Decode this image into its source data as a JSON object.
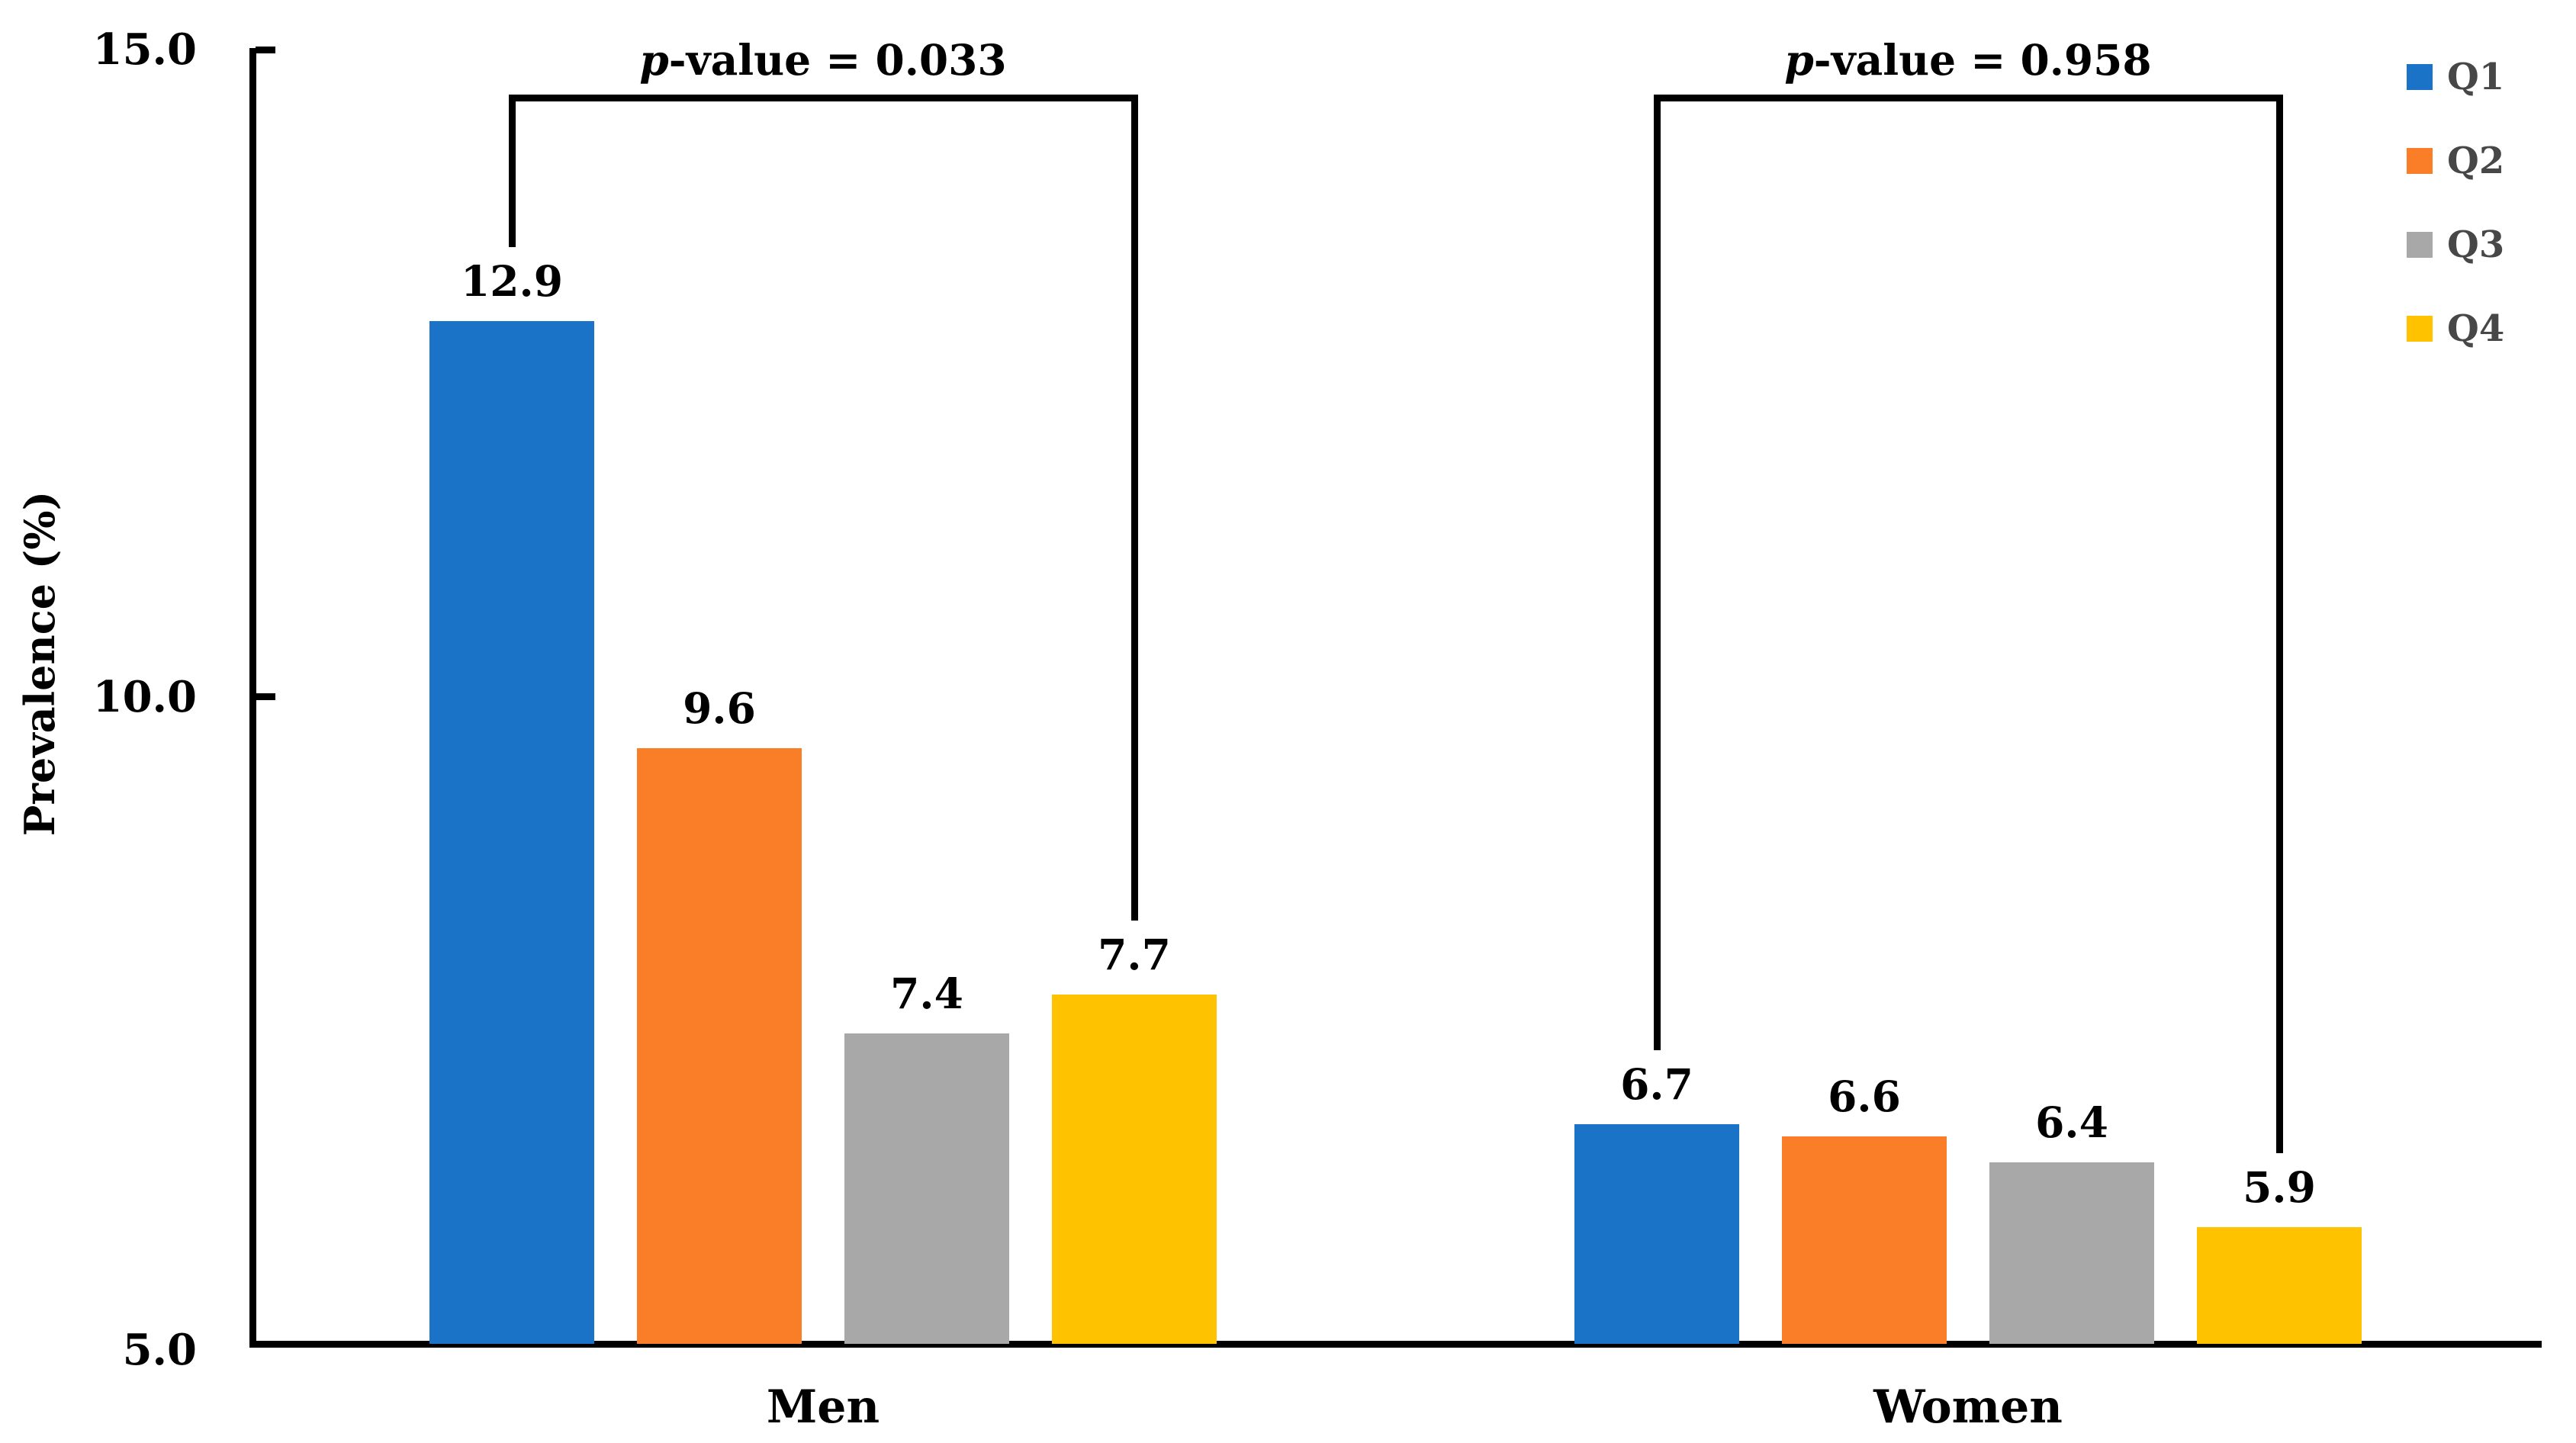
{
  "chart_data": {
    "type": "bar",
    "title": "",
    "xlabel": "",
    "ylabel": "Prevalence (%)",
    "ylim": [
      5.0,
      15.0
    ],
    "yticks": [
      15.0,
      10.0,
      5.0
    ],
    "ytick_labels": [
      "15.0",
      "10.0",
      "5.0"
    ],
    "categories": [
      "Men",
      "Women"
    ],
    "series": [
      {
        "name": "Q1",
        "color": "#1A73C6",
        "values": [
          12.9,
          6.7
        ]
      },
      {
        "name": "Q2",
        "color": "#FA7E27",
        "values": [
          9.6,
          6.6
        ]
      },
      {
        "name": "Q3",
        "color": "#A8A8A8",
        "values": [
          7.4,
          6.4
        ]
      },
      {
        "name": "Q4",
        "color": "#FEC200",
        "values": [
          7.7,
          5.9
        ]
      }
    ],
    "bar_value_labels": [
      [
        "12.9",
        "9.6",
        "7.4",
        "7.7"
      ],
      [
        "6.7",
        "6.6",
        "6.4",
        "5.9"
      ]
    ],
    "annotations": [
      {
        "category": "Men",
        "text": "p-value = 0.033"
      },
      {
        "category": "Women",
        "text": "p-value = 0.958"
      }
    ],
    "legend": {
      "position": "top-right",
      "entries": [
        "Q1",
        "Q2",
        "Q3",
        "Q4"
      ]
    },
    "grid": false,
    "axis_color": "#000000",
    "legend_text_color": "#474747"
  }
}
